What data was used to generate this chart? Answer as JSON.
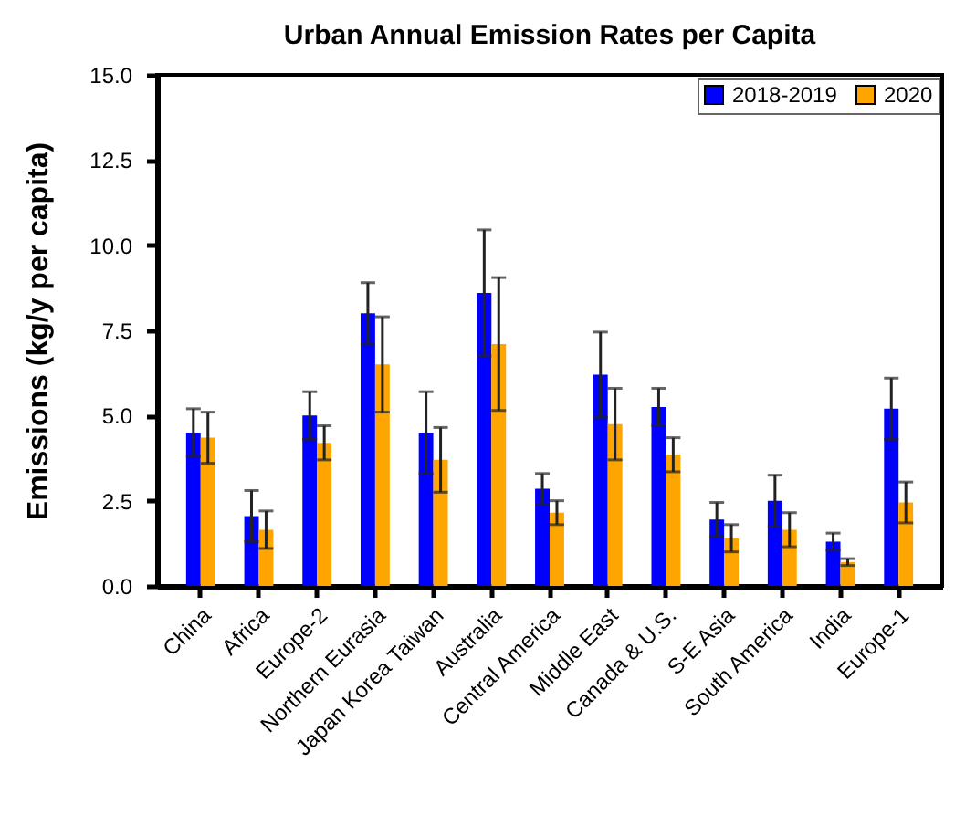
{
  "chart_data": {
    "type": "bar",
    "title": "Urban Annual Emission Rates per Capita",
    "ylabel": "Emissions (kg/y per capita)",
    "categories": [
      "China",
      "Africa",
      "Europe-2",
      "Northern Eurasia",
      "Japan Korea Taiwan",
      "Australia",
      "Central America",
      "Middle East",
      "Canada & U.S.",
      "S-E Asia",
      "South America",
      "India",
      "Europe-1"
    ],
    "series": [
      {
        "name": "2018-2019",
        "color": "#0000ff",
        "values": [
          4.5,
          2.05,
          5.0,
          8.0,
          4.5,
          8.6,
          2.85,
          6.2,
          5.25,
          1.95,
          2.5,
          1.3,
          5.2
        ],
        "errors": [
          0.7,
          0.75,
          0.7,
          0.9,
          1.2,
          1.85,
          0.45,
          1.25,
          0.55,
          0.5,
          0.75,
          0.25,
          0.9
        ]
      },
      {
        "name": "2020",
        "color": "#ffa500",
        "values": [
          4.35,
          1.65,
          4.2,
          6.5,
          3.7,
          7.1,
          2.15,
          4.75,
          3.85,
          1.4,
          1.65,
          0.7,
          2.45
        ],
        "errors": [
          0.75,
          0.55,
          0.5,
          1.4,
          0.95,
          1.95,
          0.35,
          1.05,
          0.5,
          0.4,
          0.5,
          0.1,
          0.6
        ]
      }
    ],
    "ylim": [
      0,
      15
    ],
    "yticks": [
      {
        "value": 0,
        "label": "0.0"
      },
      2.5,
      {
        "value": 5,
        "label": "5.0"
      },
      7.5,
      {
        "value": 10,
        "label": "10.0"
      },
      12.5,
      {
        "value": 15,
        "label": "15.0"
      }
    ],
    "legend": "top right"
  }
}
